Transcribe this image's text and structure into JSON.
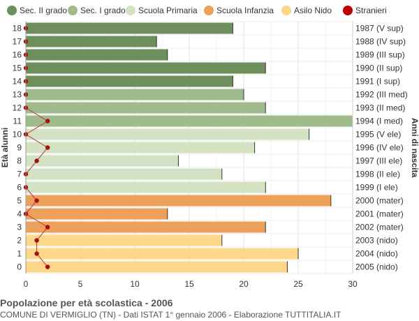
{
  "chart_data": {
    "type": "bar",
    "orientation": "horizontal",
    "title": "Popolazione per età scolastica - 2006",
    "subtitle": "COMUNE DI VERMIGLIO (TN) - Dati ISTAT 1° gennaio 2006 - Elaborazione TUTTITALIA.IT",
    "ylabel": "Età alunni",
    "ylabel_right": "Anni di nascita",
    "xlim": [
      0,
      30
    ],
    "x_ticks": [
      0,
      5,
      10,
      15,
      20,
      25,
      30
    ],
    "grid": true,
    "legend_position": "top",
    "legend": [
      {
        "label": "Sec. II grado",
        "color": "#6e8f5b"
      },
      {
        "label": "Sec. I grado",
        "color": "#9fbb8c"
      },
      {
        "label": "Scuola Primaria",
        "color": "#d4e2c4"
      },
      {
        "label": "Scuola Infanzia",
        "color": "#eda05a"
      },
      {
        "label": "Asilo Nido",
        "color": "#fdd78a"
      },
      {
        "label": "Stranieri",
        "color": "#c00000"
      }
    ],
    "rows": [
      {
        "age": "18",
        "birth": "1987 (V sup)",
        "value": 19,
        "stranieri": 0,
        "group": 0
      },
      {
        "age": "17",
        "birth": "1988 (IV sup)",
        "value": 12,
        "stranieri": 0,
        "group": 0
      },
      {
        "age": "16",
        "birth": "1989 (III sup)",
        "value": 13,
        "stranieri": 0,
        "group": 0
      },
      {
        "age": "15",
        "birth": "1990 (II sup)",
        "value": 22,
        "stranieri": 0,
        "group": 0
      },
      {
        "age": "14",
        "birth": "1991 (I sup)",
        "value": 19,
        "stranieri": 0,
        "group": 0
      },
      {
        "age": "13",
        "birth": "1992 (III med)",
        "value": 20,
        "stranieri": 0,
        "group": 1
      },
      {
        "age": "12",
        "birth": "1993 (II med)",
        "value": 22,
        "stranieri": 0,
        "group": 1
      },
      {
        "age": "11",
        "birth": "1994 (I med)",
        "value": 30,
        "stranieri": 2,
        "group": 1
      },
      {
        "age": "10",
        "birth": "1995 (V ele)",
        "value": 26,
        "stranieri": 0,
        "group": 2
      },
      {
        "age": "9",
        "birth": "1996 (IV ele)",
        "value": 21,
        "stranieri": 2,
        "group": 2
      },
      {
        "age": "8",
        "birth": "1997 (III ele)",
        "value": 14,
        "stranieri": 1,
        "group": 2
      },
      {
        "age": "7",
        "birth": "1998 (II ele)",
        "value": 18,
        "stranieri": 0,
        "group": 2
      },
      {
        "age": "6",
        "birth": "1999 (I ele)",
        "value": 22,
        "stranieri": 0,
        "group": 2
      },
      {
        "age": "5",
        "birth": "2000 (mater)",
        "value": 28,
        "stranieri": 1,
        "group": 3
      },
      {
        "age": "4",
        "birth": "2001 (mater)",
        "value": 13,
        "stranieri": 0,
        "group": 3
      },
      {
        "age": "3",
        "birth": "2002 (mater)",
        "value": 22,
        "stranieri": 2,
        "group": 3
      },
      {
        "age": "2",
        "birth": "2003 (nido)",
        "value": 18,
        "stranieri": 1,
        "group": 4
      },
      {
        "age": "1",
        "birth": "2004 (nido)",
        "value": 25,
        "stranieri": 1,
        "group": 4
      },
      {
        "age": "0",
        "birth": "2005 (nido)",
        "value": 24,
        "stranieri": 2,
        "group": 4
      }
    ]
  }
}
